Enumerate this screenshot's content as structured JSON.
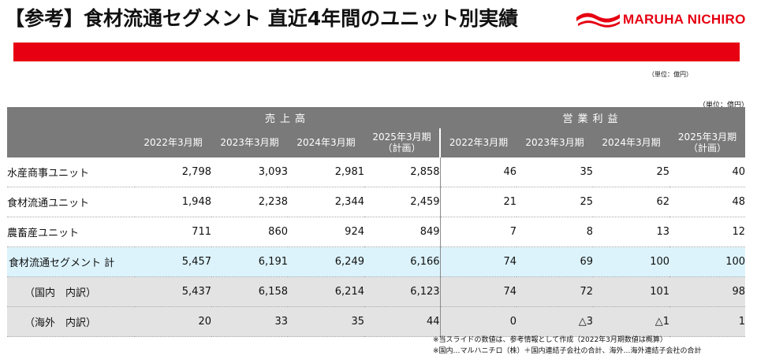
{
  "page": {
    "title": "【参考】食材流通セグメント 直近4年間のユニット別実績",
    "logo_text": "MARUHA NICHIRO",
    "unit_top": "（単位：億円）",
    "unit_table": "（単位：億円）"
  },
  "table": {
    "group_sales": "売上高",
    "group_profit": "営業利益",
    "years_sales": [
      "2022年3月期",
      "2023年3月期",
      "2024年3月期",
      "2025年3月期\n（計画）"
    ],
    "years_profit": [
      "2022年3月期",
      "2023年3月期",
      "2024年3月期",
      "2025年3月期\n（計画）"
    ],
    "rows": [
      {
        "label": "水産商事ユニット",
        "sales": [
          "2,798",
          "3,093",
          "2,981",
          "2,858"
        ],
        "profit": [
          "46",
          "35",
          "25",
          "40"
        ]
      },
      {
        "label": "食材流通ユニット",
        "sales": [
          "1,948",
          "2,238",
          "2,344",
          "2,459"
        ],
        "profit": [
          "21",
          "25",
          "62",
          "48"
        ]
      },
      {
        "label": "農畜産ユニット",
        "sales": [
          "711",
          "860",
          "924",
          "849"
        ],
        "profit": [
          "7",
          "8",
          "13",
          "12"
        ]
      },
      {
        "label": "食材流通セグメント 計",
        "sales": [
          "5,457",
          "6,191",
          "6,249",
          "6,166"
        ],
        "profit": [
          "74",
          "69",
          "100",
          "100"
        ]
      },
      {
        "label": "（国内　内訳）",
        "sales": [
          "5,437",
          "6,158",
          "6,214",
          "6,123"
        ],
        "profit": [
          "74",
          "72",
          "101",
          "98"
        ]
      },
      {
        "label": "（海外　内訳）",
        "sales": [
          "20",
          "33",
          "35",
          "44"
        ],
        "profit": [
          "0",
          "△3",
          "△1",
          "1"
        ]
      }
    ]
  },
  "notes": [
    "※当スライドの数値は、参考情報として作成（2022年3月期数値は概算）",
    "※国内…マルハニチロ（株）＋国内連結子会社の合計、海外…海外連結子会社の合計"
  ],
  "colors": {
    "brand_red": "#e60012",
    "header_gray": "#7a7a7a",
    "total_row": "#dcf3fb",
    "sub_row": "#e3e3e3"
  }
}
